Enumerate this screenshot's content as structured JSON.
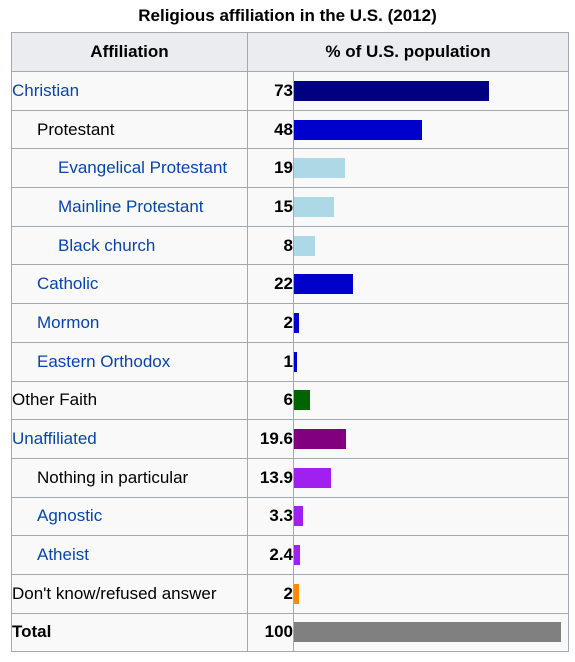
{
  "chart_data": {
    "type": "table",
    "title": "Religious affiliation in the U.S. (2012)",
    "columns": [
      "Affiliation",
      "% of U.S. population"
    ],
    "xlim": [
      0,
      100
    ],
    "rows": [
      {
        "label": "Christian",
        "value": 73,
        "display": "73",
        "level": 0,
        "link": true,
        "color": "#000080"
      },
      {
        "label": "Protestant",
        "value": 48,
        "display": "48",
        "level": 1,
        "link": false,
        "color": "#0000cd"
      },
      {
        "label": "Evangelical Protestant",
        "value": 19,
        "display": "19",
        "level": 2,
        "link": true,
        "color": "#add8e6"
      },
      {
        "label": "Mainline Protestant",
        "value": 15,
        "display": "15",
        "level": 2,
        "link": true,
        "color": "#add8e6"
      },
      {
        "label": "Black church",
        "value": 8,
        "display": "8",
        "level": 2,
        "link": true,
        "color": "#add8e6"
      },
      {
        "label": "Catholic",
        "value": 22,
        "display": "22",
        "level": 1,
        "link": true,
        "color": "#0000cd"
      },
      {
        "label": "Mormon",
        "value": 2,
        "display": "2",
        "level": 1,
        "link": true,
        "color": "#0000cd"
      },
      {
        "label": "Eastern Orthodox",
        "value": 1,
        "display": "1",
        "level": 1,
        "link": true,
        "color": "#0000cd"
      },
      {
        "label": "Other Faith",
        "value": 6,
        "display": "6",
        "level": 0,
        "link": false,
        "color": "#006400"
      },
      {
        "label": "Unaffiliated",
        "value": 19.6,
        "display": "19.6",
        "level": 0,
        "link": true,
        "color": "#800080"
      },
      {
        "label": "Nothing in particular",
        "value": 13.9,
        "display": "13.9",
        "level": 1,
        "link": false,
        "color": "#a020f0"
      },
      {
        "label": "Agnostic",
        "value": 3.3,
        "display": "3.3",
        "level": 1,
        "link": true,
        "color": "#a020f0"
      },
      {
        "label": "Atheist",
        "value": 2.4,
        "display": "2.4",
        "level": 1,
        "link": true,
        "color": "#a020f0"
      },
      {
        "label": "Don't know/refused answer",
        "value": 2,
        "display": "2",
        "level": 0,
        "link": false,
        "color": "#ff8c00"
      },
      {
        "label": "Total",
        "value": 100,
        "display": "100",
        "level": 0,
        "link": false,
        "bold": true,
        "color": "#808080"
      }
    ]
  }
}
